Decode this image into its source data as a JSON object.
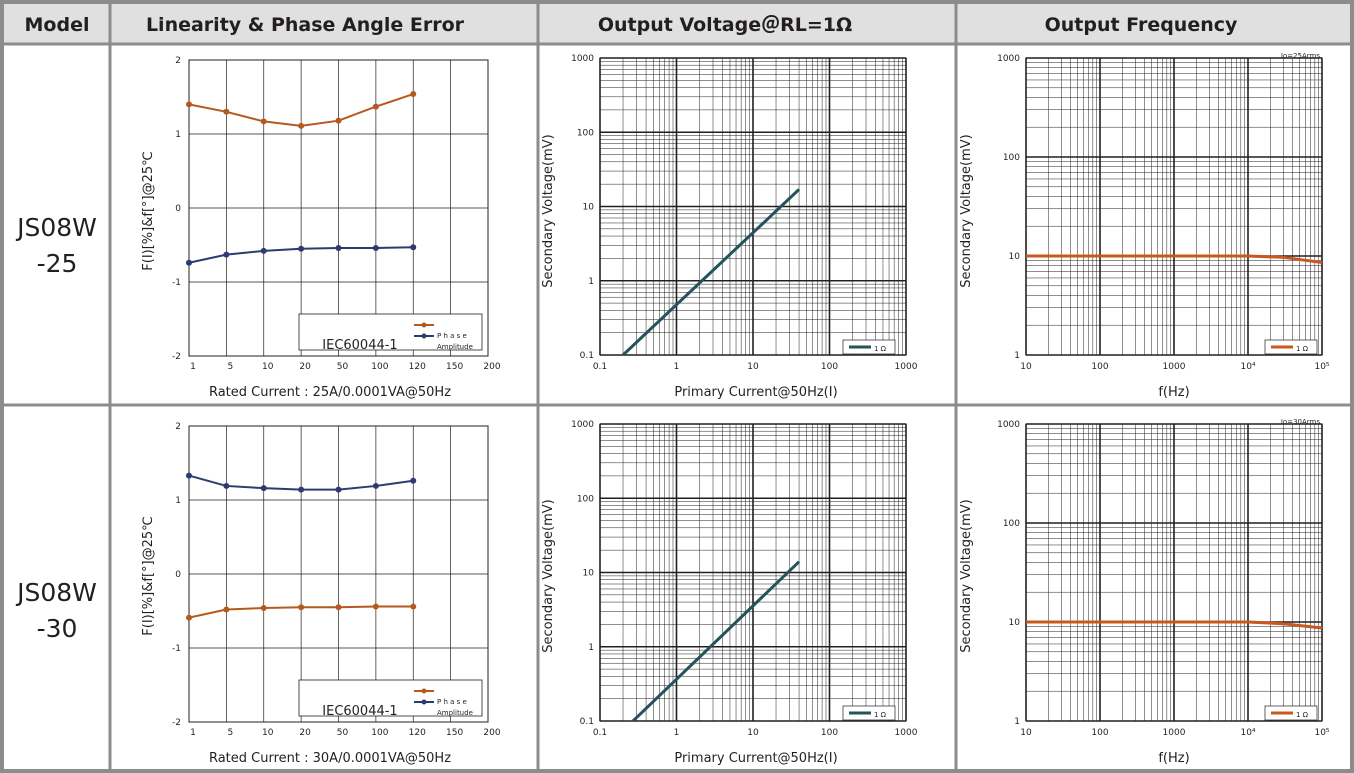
{
  "header": {
    "model": "Model",
    "linearity": "Linearity & Phase Angle Error",
    "output_voltage": "Output Voltage＠RL=1Ω",
    "output_frequency": "Output Frequency"
  },
  "colors": {
    "phase": "#b55a1f",
    "amplitude": "#2c3c72",
    "voltage_line": "#24535a",
    "frequency_line": "#c8581e",
    "table_border": "#8c8c8c",
    "header_bg": "#e0e0e0"
  },
  "rows": [
    {
      "model_line1": "JS08W",
      "model_line2": "-25",
      "rated_label": "Rated Current : 25A/0.0001VA@50Hz",
      "io_label": "Io=25Arms"
    },
    {
      "model_line1": "JS08W",
      "model_line2": "-30",
      "rated_label": "Rated Current : 30A/0.0001VA@50Hz",
      "io_label": "Io=30Arms"
    }
  ],
  "common": {
    "linearity_ylabel": "F(I)[%]&f[°]@25℃",
    "standard_label": "IEC60044-1",
    "phase_label": "P h a s e",
    "amplitude_label": "Amplitude",
    "voltage_ylabel": "Secondary Voltage(mV)",
    "voltage_xlabel": "Primary Current@50Hz(I)",
    "voltage_legend": "1 Ω",
    "freq_ylabel": "Secondary Voltage(mV)",
    "freq_xlabel": "f(Hz)",
    "freq_legend": "1 Ω"
  },
  "chart_data": [
    {
      "type": "line",
      "row": "JS08W-25",
      "panel": "Linearity & Phase Angle Error",
      "categories": [
        "1",
        "5",
        "10",
        "20",
        "50",
        "100",
        "120"
      ],
      "axis_categories": [
        "1",
        "5",
        "10",
        "20",
        "50",
        "100",
        "120",
        "150",
        "200"
      ],
      "ylim": [
        -2,
        2
      ],
      "yticks": [
        "2",
        "1",
        "0",
        "-1",
        "-2"
      ],
      "ylabel": "F(I)[%]&f[°]@25℃",
      "xlabel": "Rated Current : 25A/0.0001VA@50Hz",
      "series": [
        {
          "name": "P h a s e",
          "color": "#b55a1f",
          "values": [
            1.4,
            1.3,
            1.17,
            1.11,
            1.18,
            1.37,
            1.54
          ]
        },
        {
          "name": "Amplitude",
          "color": "#2c3c72",
          "values": [
            -0.74,
            -0.63,
            -0.58,
            -0.55,
            -0.54,
            -0.54,
            -0.53
          ]
        }
      ]
    },
    {
      "type": "line",
      "row": "JS08W-25",
      "panel": "Output Voltage＠RL=1Ω",
      "scale": "log-log",
      "xlim": [
        0.1,
        1000
      ],
      "ylim": [
        0.1,
        1000
      ],
      "xticks": [
        "0.1",
        "1",
        "10",
        "100",
        "1000"
      ],
      "yticks": [
        "1000",
        "100",
        "10",
        "1",
        "0.1"
      ],
      "ylabel": "Secondary Voltage(mV)",
      "xlabel": "Primary Current@50Hz(I)",
      "series": [
        {
          "name": "1 Ω",
          "color": "#24535a",
          "x": [
            0.2,
            40
          ],
          "y": [
            0.085,
            17
          ]
        }
      ]
    },
    {
      "type": "line",
      "row": "JS08W-25",
      "panel": "Output Frequency",
      "scale": "log-log",
      "xlim": [
        10,
        100000
      ],
      "ylim": [
        1,
        1000
      ],
      "xticks": [
        "10",
        "100",
        "1000",
        "10⁴",
        "10⁵"
      ],
      "yticks": [
        "1000",
        "100",
        "10",
        "1"
      ],
      "ylabel": "Secondary Voltage(mV)",
      "xlabel": "f(Hz)",
      "annotation": "Io=25Arms",
      "series": [
        {
          "name": "1 Ω",
          "color": "#c8581e",
          "x": [
            10,
            1000,
            10000,
            30000,
            100000
          ],
          "y": [
            10,
            10,
            10,
            9.7,
            8.6
          ]
        }
      ]
    },
    {
      "type": "line",
      "row": "JS08W-30",
      "panel": "Linearity & Phase Angle Error",
      "categories": [
        "1",
        "5",
        "10",
        "20",
        "50",
        "100",
        "120"
      ],
      "axis_categories": [
        "1",
        "5",
        "10",
        "20",
        "50",
        "100",
        "120",
        "150",
        "200"
      ],
      "ylim": [
        -2,
        2
      ],
      "yticks": [
        "2",
        "1",
        "0",
        "-1",
        "-2"
      ],
      "ylabel": "F(I)[%]&f[°]@25℃",
      "xlabel": "Rated Current : 30A/0.0001VA@50Hz",
      "series": [
        {
          "name": "P h a s e",
          "color": "#b55a1f",
          "values": [
            -0.59,
            -0.48,
            -0.46,
            -0.45,
            -0.45,
            -0.44,
            -0.44
          ]
        },
        {
          "name": "Amplitude",
          "color": "#2c3c72",
          "values": [
            1.33,
            1.19,
            1.16,
            1.14,
            1.14,
            1.19,
            1.26
          ]
        }
      ]
    },
    {
      "type": "line",
      "row": "JS08W-30",
      "panel": "Output Voltage＠RL=1Ω",
      "scale": "log-log",
      "xlim": [
        0.1,
        1000
      ],
      "ylim": [
        0.1,
        1000
      ],
      "xticks": [
        "0.1",
        "1",
        "10",
        "100",
        "1000"
      ],
      "yticks": [
        "1000",
        "100",
        "10",
        "1",
        "0.1"
      ],
      "ylabel": "Secondary Voltage(mV)",
      "xlabel": "Primary Current@50Hz(I)",
      "series": [
        {
          "name": "1 Ω",
          "color": "#24535a",
          "x": [
            0.27,
            40
          ],
          "y": [
            0.09,
            14
          ]
        }
      ]
    },
    {
      "type": "line",
      "row": "JS08W-30",
      "panel": "Output Frequency",
      "scale": "log-log",
      "xlim": [
        10,
        100000
      ],
      "ylim": [
        1,
        1000
      ],
      "xticks": [
        "10",
        "100",
        "1000",
        "10⁴",
        "10⁵"
      ],
      "yticks": [
        "1000",
        "100",
        "10",
        "1"
      ],
      "ylabel": "Secondary Voltage(mV)",
      "xlabel": "f(Hz)",
      "annotation": "Io=30Arms",
      "series": [
        {
          "name": "1 Ω",
          "color": "#c8581e",
          "x": [
            10,
            1000,
            10000,
            30000,
            100000
          ],
          "y": [
            10,
            10,
            10,
            9.6,
            8.7
          ]
        }
      ]
    }
  ]
}
